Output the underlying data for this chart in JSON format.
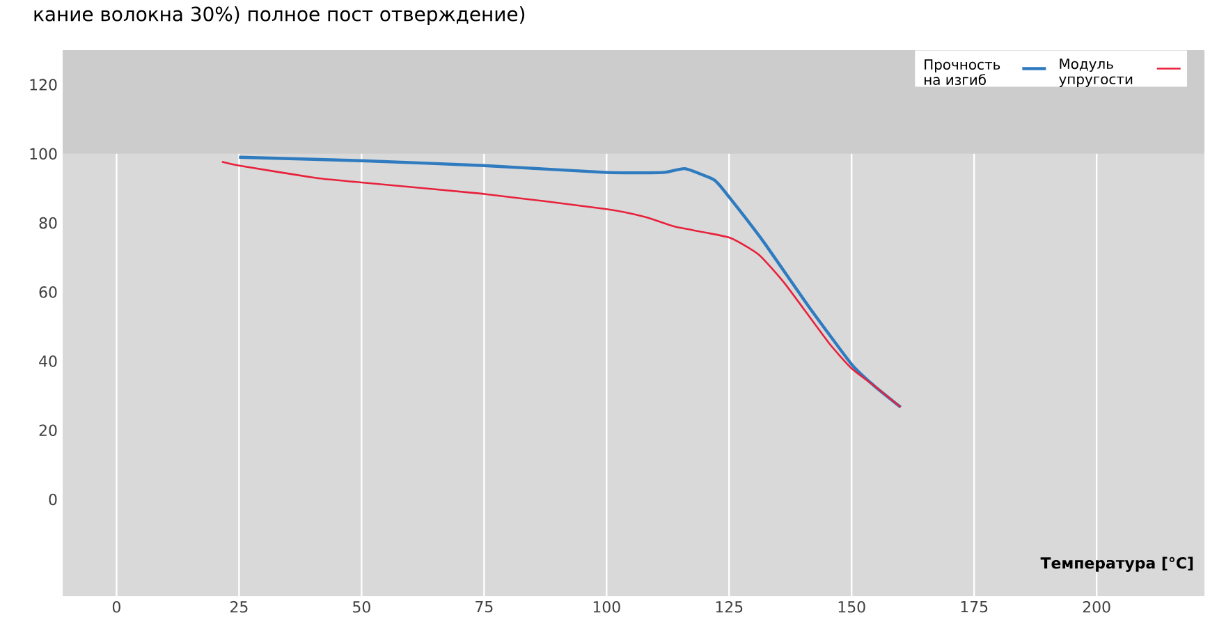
{
  "chart_data": {
    "type": "line",
    "title": "кание волокна 30%) полное пост отверждение)",
    "xlabel": "Температура [°C]",
    "xlim": [
      -11,
      222
    ],
    "ylim": [
      -28,
      130
    ],
    "xticks": [
      0,
      25,
      50,
      75,
      100,
      125,
      150,
      175,
      200
    ],
    "yticks": [
      0,
      20,
      40,
      60,
      80,
      100,
      120
    ],
    "grid": "x",
    "legend": "top right",
    "marker": "none",
    "line_style": "solid",
    "bands": [
      {
        "axis": "y",
        "from": 100,
        "to": 130,
        "color": "#cccccc"
      }
    ],
    "series": [
      {
        "name": "Прочность на изгиб",
        "color": "#2f7bc0",
        "x": [
          25,
          50,
          75,
          100,
          111.6,
          116,
          122,
          125,
          132,
          141,
          150,
          154.5,
          160
        ],
        "values": [
          99,
          98,
          96.6,
          94.6,
          94.6,
          95.7,
          92.4,
          87.5,
          74.6,
          56.3,
          39.1,
          33,
          26.7
        ]
      },
      {
        "name": "Модуль упругости",
        "color": "#e8213b",
        "x": [
          21.5,
          25,
          40.7,
          50,
          75,
          100,
          108,
          114,
          125,
          131,
          136.4,
          145.4,
          150,
          154.5,
          160
        ],
        "values": [
          97.7,
          96.6,
          93,
          91.7,
          88.4,
          84,
          81.7,
          78.9,
          75.8,
          70.9,
          62.4,
          45.2,
          37.9,
          33,
          26.7
        ]
      }
    ]
  }
}
